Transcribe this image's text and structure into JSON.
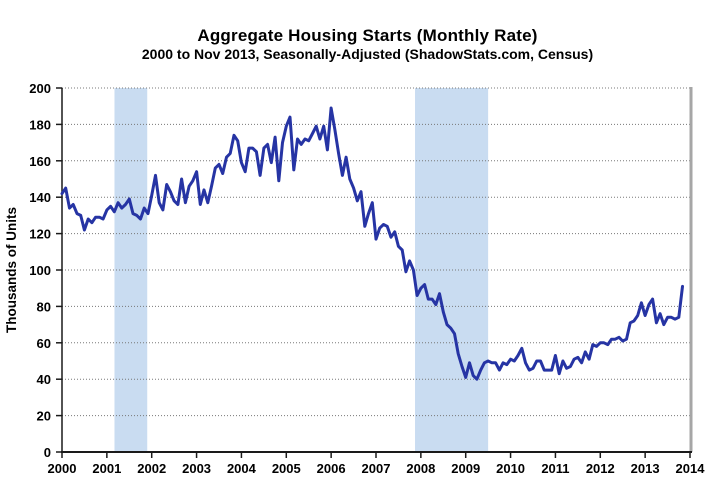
{
  "chart_data": {
    "type": "line",
    "title": "Aggregate Housing Starts (Monthly Rate)",
    "subtitle": "2000 to Nov 2013, Seasonally-Adjusted (ShadowStats.com, Census)",
    "ylabel": "Thousands of Units",
    "xlabel": "",
    "xlim": [
      2000,
      2014
    ],
    "ylim": [
      0,
      200
    ],
    "xticks": [
      2000,
      2001,
      2002,
      2003,
      2004,
      2005,
      2006,
      2007,
      2008,
      2009,
      2010,
      2011,
      2012,
      2013,
      2014
    ],
    "yticks": [
      0,
      20,
      40,
      60,
      80,
      100,
      120,
      140,
      160,
      180,
      200
    ],
    "grid": "horizontal-dotted",
    "legend_position": "none",
    "recession_bands": [
      {
        "from": 2001.17,
        "to": 2001.9
      },
      {
        "from": 2007.87,
        "to": 2009.5
      }
    ],
    "series": [
      {
        "name": "Aggregate Housing Starts (Monthly Rate, Thousands of Units)",
        "frequency": "monthly",
        "start_label": "Jan 2000",
        "end_label": "Nov 2013",
        "x_start": 2000,
        "x_step": 0.0833333,
        "values": [
          142,
          145,
          134,
          136,
          131,
          130,
          122,
          128,
          126,
          129,
          129,
          128,
          133,
          135,
          132,
          137,
          134,
          136,
          139,
          131,
          130,
          128,
          134,
          131,
          141,
          152,
          137,
          133,
          147,
          143,
          138,
          136,
          150,
          137,
          146,
          149,
          154,
          136,
          144,
          137,
          146,
          156,
          158,
          153,
          162,
          164,
          174,
          171,
          159,
          154,
          167,
          167,
          165,
          152,
          167,
          169,
          159,
          173,
          149,
          170,
          179,
          184,
          155,
          172,
          169,
          172,
          171,
          175,
          179,
          172,
          179,
          166,
          189,
          177,
          164,
          152,
          162,
          150,
          145,
          138,
          143,
          124,
          131,
          137,
          117,
          123,
          125,
          124,
          118,
          121,
          113,
          111,
          99,
          105,
          100,
          86,
          90,
          92,
          84,
          84,
          81,
          87,
          77,
          70,
          68,
          65,
          54,
          47,
          41,
          49,
          42,
          40,
          45,
          49,
          50,
          49,
          49,
          45,
          49,
          48,
          51,
          50,
          53,
          57,
          49,
          45,
          46,
          50,
          50,
          45,
          45,
          45,
          53,
          43,
          50,
          46,
          47,
          51,
          52,
          49,
          55,
          51,
          59,
          58,
          60,
          60,
          59,
          62,
          62,
          63,
          61,
          62,
          71,
          72,
          75,
          82,
          75,
          81,
          84,
          71,
          76,
          70,
          74,
          74,
          73,
          74,
          91
        ]
      }
    ],
    "colors": {
      "line": "#2634A4",
      "band": "#C9DCF1",
      "grid": "#787878",
      "axis": "#1A1A1A",
      "border": "#A6A6A6",
      "text": "#000000",
      "background": "#FFFFFF"
    }
  }
}
